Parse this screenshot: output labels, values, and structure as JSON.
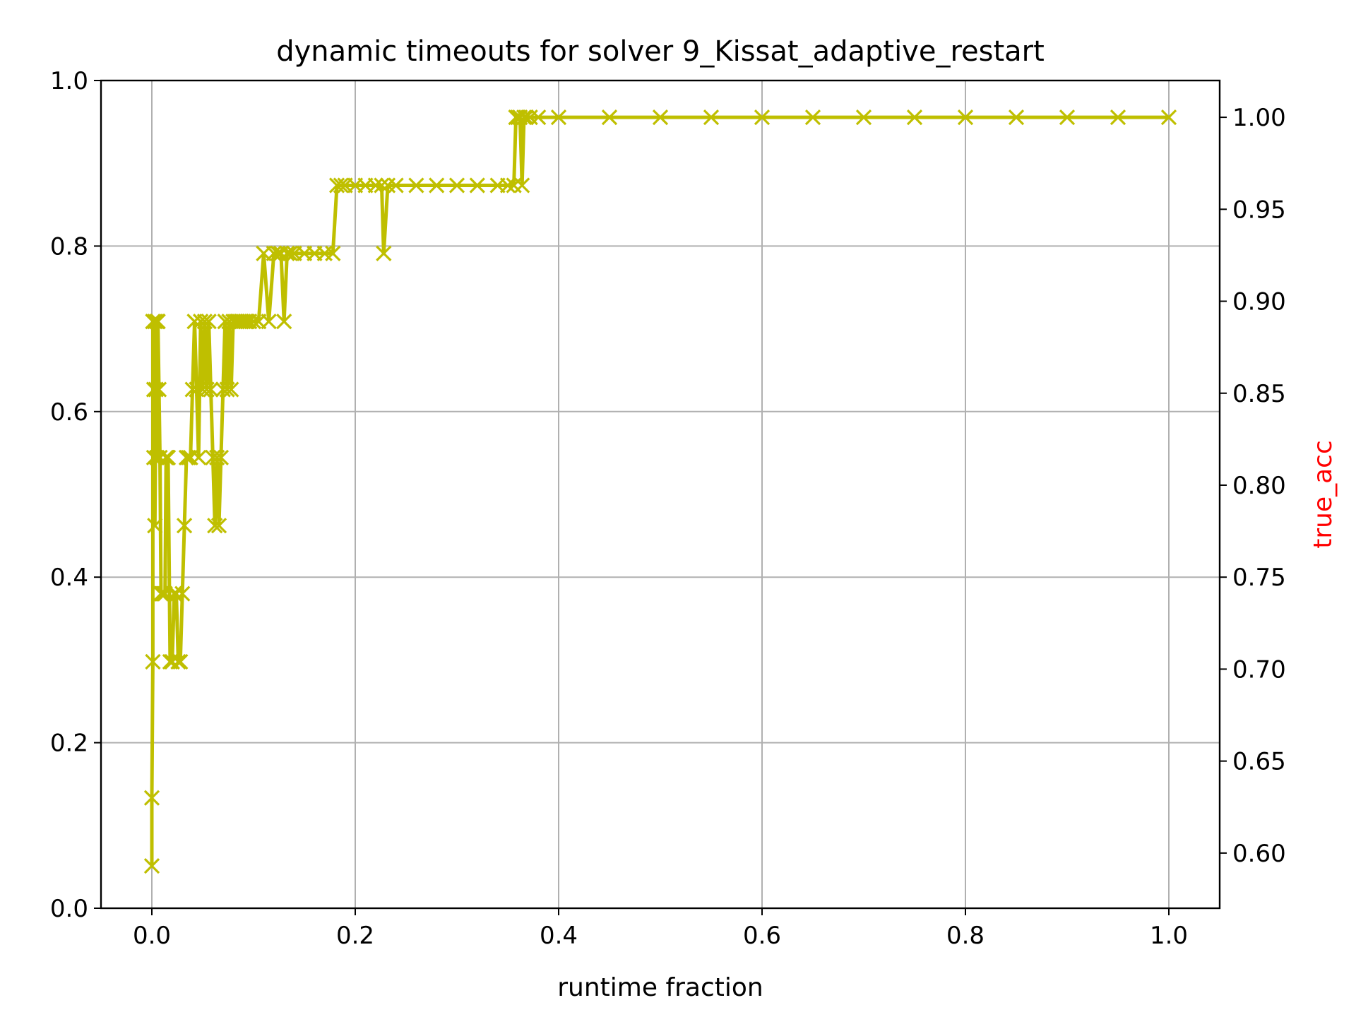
{
  "chart_data": {
    "type": "line",
    "title": "dynamic timeouts for solver 9_Kissat_adaptive_restart",
    "xlabel": "runtime fraction",
    "ylabel": "",
    "y2label": "true_acc",
    "y2label_color": "#ff0000",
    "xlim": [
      -0.05,
      1.05
    ],
    "ylim": [
      0.0,
      1.0
    ],
    "y2lim": [
      0.57,
      1.02
    ],
    "grid": true,
    "marker": "x",
    "series_color": "#bfbf00",
    "x_ticks": [
      "0.0",
      "0.2",
      "0.4",
      "0.6",
      "0.8",
      "1.0"
    ],
    "y_ticks": [
      "0.0",
      "0.2",
      "0.4",
      "0.6",
      "0.8",
      "1.0"
    ],
    "y2_ticks": [
      "0.60",
      "0.65",
      "0.70",
      "0.75",
      "0.80",
      "0.85",
      "0.90",
      "0.95",
      "1.00"
    ],
    "x_tick_values": [
      0.0,
      0.2,
      0.4,
      0.6,
      0.8,
      1.0
    ],
    "y_tick_values": [
      0.0,
      0.2,
      0.4,
      0.6,
      0.8,
      1.0
    ],
    "y2_tick_values": [
      0.6,
      0.65,
      0.7,
      0.75,
      0.8,
      0.85,
      0.9,
      0.95,
      1.0
    ],
    "series": [
      {
        "axis": "right",
        "x": [
          0.0,
          0.0,
          0.001,
          0.001,
          0.002,
          0.002,
          0.003,
          0.003,
          0.004,
          0.005,
          0.005,
          0.006,
          0.007,
          0.008,
          0.009,
          0.01,
          0.011,
          0.012,
          0.013,
          0.014,
          0.015,
          0.016,
          0.018,
          0.02,
          0.022,
          0.024,
          0.026,
          0.028,
          0.03,
          0.032,
          0.034,
          0.036,
          0.038,
          0.04,
          0.042,
          0.044,
          0.046,
          0.048,
          0.05,
          0.052,
          0.054,
          0.056,
          0.058,
          0.06,
          0.062,
          0.064,
          0.066,
          0.068,
          0.07,
          0.072,
          0.074,
          0.076,
          0.078,
          0.08,
          0.082,
          0.084,
          0.086,
          0.088,
          0.09,
          0.092,
          0.094,
          0.096,
          0.1,
          0.105,
          0.11,
          0.115,
          0.12,
          0.124,
          0.127,
          0.13,
          0.133,
          0.136,
          0.14,
          0.15,
          0.16,
          0.17,
          0.178,
          0.182,
          0.186,
          0.19,
          0.2,
          0.21,
          0.22,
          0.226,
          0.228,
          0.232,
          0.24,
          0.26,
          0.28,
          0.3,
          0.32,
          0.34,
          0.35,
          0.356,
          0.358,
          0.36,
          0.362,
          0.364,
          0.366,
          0.368,
          0.372,
          0.38,
          0.4,
          0.45,
          0.5,
          0.55,
          0.6,
          0.65,
          0.7,
          0.75,
          0.8,
          0.85,
          0.9,
          0.95,
          1.0
        ],
        "y": [
          0.593,
          0.63,
          0.704,
          0.889,
          0.852,
          0.815,
          0.889,
          0.778,
          0.852,
          0.889,
          0.815,
          0.889,
          0.852,
          0.815,
          0.741,
          0.741,
          0.741,
          0.741,
          0.741,
          0.815,
          0.815,
          0.815,
          0.704,
          0.704,
          0.741,
          0.741,
          0.704,
          0.704,
          0.741,
          0.778,
          0.815,
          0.815,
          0.815,
          0.852,
          0.889,
          0.852,
          0.815,
          0.889,
          0.852,
          0.889,
          0.852,
          0.889,
          0.852,
          0.815,
          0.778,
          0.815,
          0.778,
          0.815,
          0.852,
          0.889,
          0.852,
          0.889,
          0.852,
          0.889,
          0.889,
          0.889,
          0.889,
          0.889,
          0.889,
          0.889,
          0.889,
          0.889,
          0.889,
          0.889,
          0.926,
          0.889,
          0.926,
          0.926,
          0.926,
          0.889,
          0.926,
          0.926,
          0.926,
          0.926,
          0.926,
          0.926,
          0.926,
          0.963,
          0.963,
          0.963,
          0.963,
          0.963,
          0.963,
          0.963,
          0.926,
          0.963,
          0.963,
          0.963,
          0.963,
          0.963,
          0.963,
          0.963,
          0.963,
          0.963,
          1.0,
          1.0,
          1.0,
          0.963,
          1.0,
          1.0,
          1.0,
          1.0,
          1.0,
          1.0,
          1.0,
          1.0,
          1.0,
          1.0,
          1.0,
          1.0,
          1.0,
          1.0,
          1.0,
          1.0,
          1.0
        ]
      }
    ]
  }
}
